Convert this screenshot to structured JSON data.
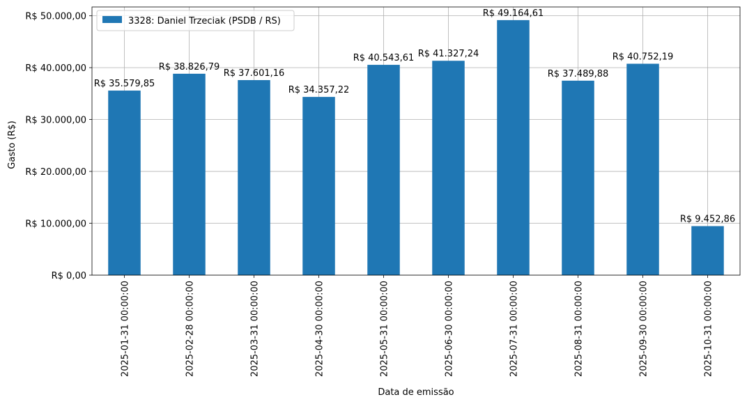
{
  "chart_data": {
    "type": "bar",
    "title": "",
    "xlabel": "Data de emissão",
    "ylabel": "Gasto (R$)",
    "categories": [
      "2025-01-31 00:00:00",
      "2025-02-28 00:00:00",
      "2025-03-31 00:00:00",
      "2025-04-30 00:00:00",
      "2025-05-31 00:00:00",
      "2025-06-30 00:00:00",
      "2025-07-31 00:00:00",
      "2025-08-31 00:00:00",
      "2025-09-30 00:00:00",
      "2025-10-31 00:00:00"
    ],
    "series": [
      {
        "name": "3328: Daniel Trzeciak (PSDB / RS)",
        "color": "#1f77b4",
        "values": [
          35579.85,
          38826.79,
          37601.16,
          34357.22,
          40543.61,
          41327.24,
          49164.61,
          37489.88,
          40752.19,
          9452.86
        ],
        "labels": [
          "R$ 35.579,85",
          "R$ 38.826,79",
          "R$ 37.601,16",
          "R$ 34.357,22",
          "R$ 40.543,61",
          "R$ 41.327,24",
          "R$ 49.164,61",
          "R$ 37.489,88",
          "R$ 40.752,19",
          "R$ 9.452,86"
        ]
      }
    ],
    "ylim": [
      0,
      51700
    ],
    "yticks": [
      0,
      10000,
      20000,
      30000,
      40000,
      50000
    ],
    "ytick_labels": [
      "R$ 0,00",
      "R$ 10.000,00",
      "R$ 20.000,00",
      "R$ 30.000,00",
      "R$ 40.000,00",
      "R$ 50.000,00"
    ],
    "grid": true,
    "legend_position": "top-left"
  }
}
